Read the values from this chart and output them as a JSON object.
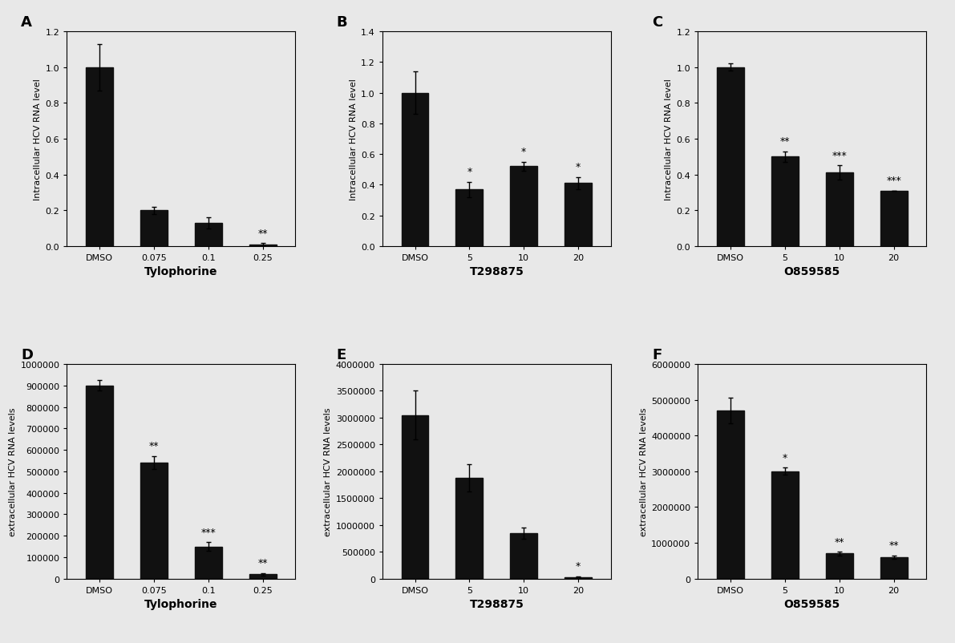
{
  "panels": [
    {
      "label": "A",
      "categories": [
        "DMSO",
        "0.075",
        "0.1",
        "0.25"
      ],
      "values": [
        1.0,
        0.2,
        0.13,
        0.01
      ],
      "errors": [
        0.13,
        0.02,
        0.03,
        0.005
      ],
      "ylabel": "Intracellular HCV RNA level",
      "xlabel": "Tylophorine",
      "ylim": [
        0,
        1.2
      ],
      "yticks": [
        0,
        0.2,
        0.4,
        0.6,
        0.8,
        1.0,
        1.2
      ],
      "sig_labels": [
        "",
        "",
        "",
        "**"
      ],
      "row": 0,
      "col": 0
    },
    {
      "label": "B",
      "categories": [
        "DMSO",
        "5",
        "10",
        "20"
      ],
      "values": [
        1.0,
        0.37,
        0.52,
        0.41
      ],
      "errors": [
        0.14,
        0.05,
        0.03,
        0.04
      ],
      "ylabel": "Intracellular HCV RNA level",
      "xlabel": "T298875",
      "ylim": [
        0,
        1.4
      ],
      "yticks": [
        0,
        0.2,
        0.4,
        0.6,
        0.8,
        1.0,
        1.2,
        1.4
      ],
      "sig_labels": [
        "",
        "*",
        "*",
        "*"
      ],
      "row": 0,
      "col": 1
    },
    {
      "label": "C",
      "categories": [
        "DMSO",
        "5",
        "10",
        "20"
      ],
      "values": [
        1.0,
        0.5,
        0.41,
        0.31
      ],
      "errors": [
        0.02,
        0.03,
        0.04,
        0.0
      ],
      "ylabel": "Intracellular HCV RNA level",
      "xlabel": "O859585",
      "ylim": [
        0,
        1.2
      ],
      "yticks": [
        0,
        0.2,
        0.4,
        0.6,
        0.8,
        1.0,
        1.2
      ],
      "sig_labels": [
        "",
        "**",
        "***",
        "***"
      ],
      "row": 0,
      "col": 2
    },
    {
      "label": "D",
      "categories": [
        "DMSO",
        "0.075",
        "0.1",
        "0.25"
      ],
      "values": [
        900000,
        540000,
        150000,
        20000
      ],
      "errors": [
        25000,
        30000,
        20000,
        5000
      ],
      "ylabel": "extracellular HCV RNA levels",
      "xlabel": "Tylophorine",
      "ylim": [
        0,
        1000000
      ],
      "yticks": [
        0,
        100000,
        200000,
        300000,
        400000,
        500000,
        600000,
        700000,
        800000,
        900000,
        1000000
      ],
      "sig_labels": [
        "",
        "**",
        "***",
        "**"
      ],
      "row": 1,
      "col": 0
    },
    {
      "label": "E",
      "categories": [
        "DMSO",
        "5",
        "10",
        "20"
      ],
      "values": [
        3050000,
        1880000,
        850000,
        30000
      ],
      "errors": [
        450000,
        250000,
        100000,
        10000
      ],
      "ylabel": "extracellular HCV RNA levels",
      "xlabel": "T298875",
      "ylim": [
        0,
        4000000
      ],
      "yticks": [
        0,
        500000,
        1000000,
        1500000,
        2000000,
        2500000,
        3000000,
        3500000,
        4000000
      ],
      "sig_labels": [
        "",
        "",
        "",
        "*"
      ],
      "row": 1,
      "col": 1
    },
    {
      "label": "F",
      "categories": [
        "DMSO",
        "5",
        "10",
        "20"
      ],
      "values": [
        4700000,
        3000000,
        700000,
        600000
      ],
      "errors": [
        350000,
        100000,
        50000,
        50000
      ],
      "ylabel": "extracellular HCV RNA levels",
      "xlabel": "O859585",
      "ylim": [
        0,
        6000000
      ],
      "yticks": [
        0,
        1000000,
        2000000,
        3000000,
        4000000,
        5000000,
        6000000
      ],
      "sig_labels": [
        "",
        "*",
        "**",
        "**"
      ],
      "row": 1,
      "col": 2
    }
  ],
  "bar_color": "#111111",
  "bar_width": 0.5,
  "background_color": "#e8e8e8",
  "tick_fontsize": 8,
  "xlabel_fontsize": 10,
  "ylabel_fontsize": 8,
  "panel_label_fontsize": 13,
  "sig_fontsize": 9
}
